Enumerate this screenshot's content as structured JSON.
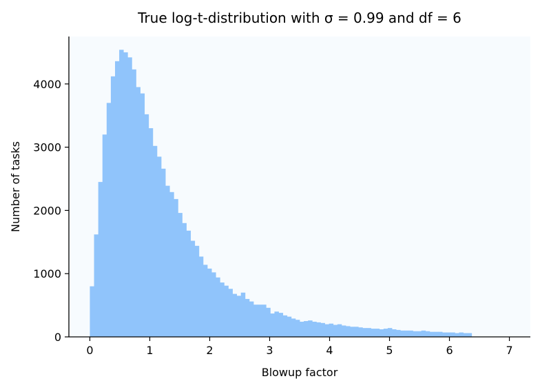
{
  "chart_data": {
    "type": "bar",
    "title": "True log-t-distribution with σ = 0.99 and df = 6",
    "xlabel": "Blowup factor",
    "ylabel": "Number of tasks",
    "xlim": [
      -0.35,
      7.35
    ],
    "ylim": [
      0,
      4750
    ],
    "xticks": [
      0,
      1,
      2,
      3,
      4,
      5,
      6,
      7
    ],
    "yticks": [
      0,
      1000,
      2000,
      3000,
      4000
    ],
    "bin_start": 0,
    "bin_width": 0.07,
    "values": [
      800,
      1620,
      2450,
      3200,
      3700,
      4120,
      4360,
      4540,
      4500,
      4420,
      4230,
      3950,
      3850,
      3520,
      3300,
      3020,
      2850,
      2660,
      2390,
      2290,
      2180,
      1960,
      1800,
      1680,
      1520,
      1440,
      1270,
      1140,
      1080,
      1020,
      940,
      860,
      810,
      760,
      680,
      650,
      700,
      600,
      560,
      510,
      510,
      510,
      460,
      370,
      400,
      380,
      340,
      320,
      290,
      270,
      240,
      250,
      260,
      240,
      230,
      220,
      200,
      210,
      190,
      200,
      180,
      170,
      160,
      160,
      150,
      140,
      140,
      130,
      130,
      120,
      130,
      140,
      120,
      110,
      100,
      100,
      100,
      90,
      90,
      100,
      90,
      80,
      80,
      80,
      70,
      70,
      70,
      60,
      70,
      60,
      60
    ],
    "grid": false,
    "bar_color": "#90c4fb",
    "plot_background": "#f7fbfe"
  }
}
